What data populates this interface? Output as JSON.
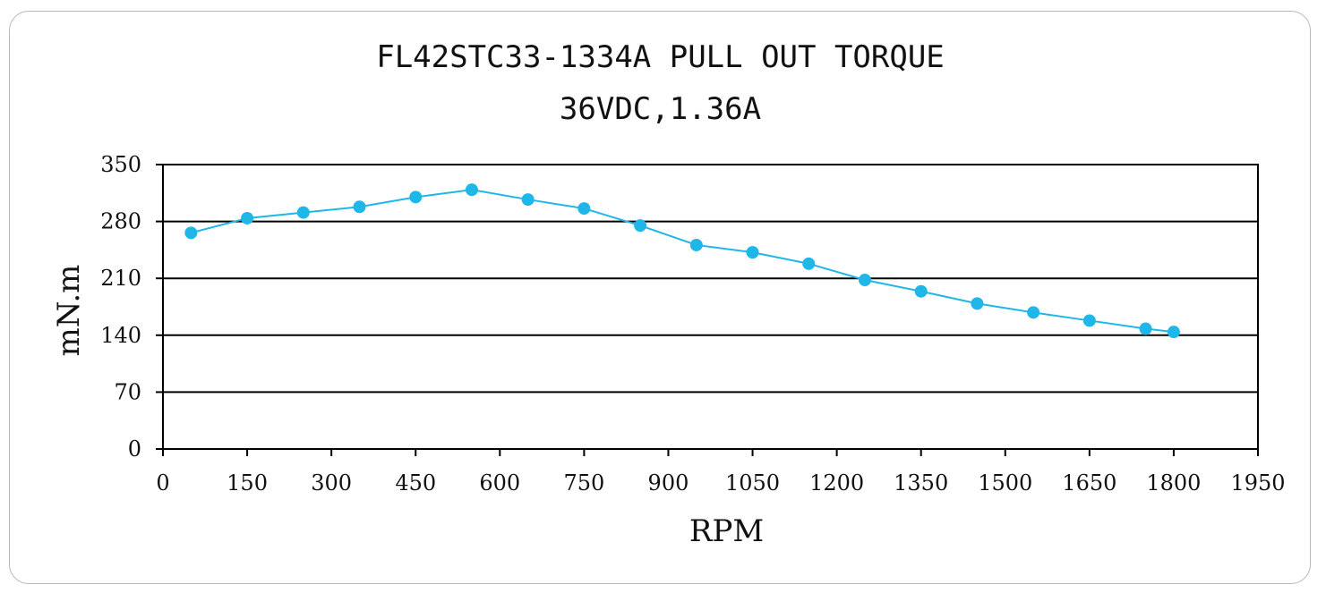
{
  "chart_data": {
    "type": "line",
    "title": "FL42STC33-1334A PULL OUT TORQUE",
    "subtitle": "36VDC,1.36A",
    "xlabel": "RPM",
    "ylabel": "mN.m",
    "xlim": [
      0,
      1950
    ],
    "ylim": [
      0,
      350
    ],
    "xticks": [
      0,
      150,
      300,
      450,
      600,
      750,
      900,
      1050,
      1200,
      1350,
      1500,
      1650,
      1800,
      1950
    ],
    "yticks": [
      0,
      70,
      140,
      210,
      280,
      350
    ],
    "grid": "horizontal",
    "legend": "none",
    "series_color": "#1fb6e8",
    "series": [
      {
        "x": [
          50,
          150,
          250,
          350,
          450,
          550,
          650,
          750,
          850,
          950,
          1050,
          1150,
          1250,
          1350,
          1450,
          1550,
          1650,
          1750,
          1800
        ],
        "y": [
          266,
          284,
          291,
          298,
          310,
          319,
          307,
          296,
          275,
          251,
          242,
          228,
          208,
          194,
          179,
          168,
          158,
          148,
          144
        ]
      }
    ]
  }
}
